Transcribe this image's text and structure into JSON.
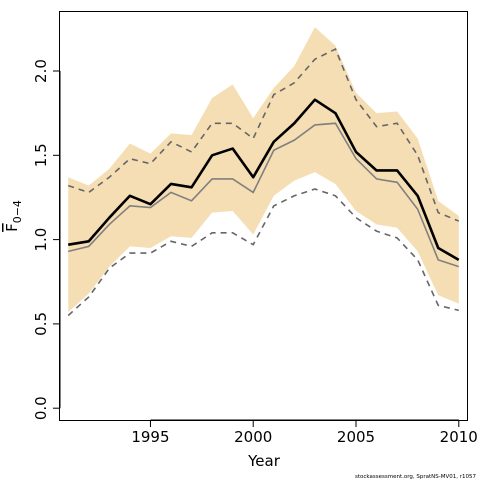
{
  "chart_data": {
    "type": "line",
    "title": "",
    "xlabel": "Year",
    "ylabel": "F̅ 0−4",
    "ylabel_main": "F",
    "ylabel_sub": "0−4",
    "xlim": [
      1990.6,
      2010.4
    ],
    "ylim": [
      -0.07,
      2.35
    ],
    "x_ticks": [
      1995,
      2000,
      2005,
      2010
    ],
    "y_ticks": [
      0.0,
      0.5,
      1.0,
      1.5,
      2.0
    ],
    "x_tick_labels": [
      "1995",
      "2000",
      "2005",
      "2010"
    ],
    "y_tick_labels": [
      "0.0",
      "0.5",
      "1.0",
      "1.5",
      "2.0"
    ],
    "grid": false,
    "x": [
      1991,
      1992,
      1993,
      1994,
      1995,
      1996,
      1997,
      1998,
      1999,
      2000,
      2001,
      2002,
      2003,
      2004,
      2005,
      2006,
      2007,
      2008,
      2009,
      2010
    ],
    "series": [
      {
        "role": "estimate",
        "values": [
          0.97,
          0.99,
          1.13,
          1.26,
          1.21,
          1.33,
          1.31,
          1.5,
          1.54,
          1.37,
          1.58,
          1.69,
          1.83,
          1.75,
          1.52,
          1.41,
          1.41,
          1.26,
          0.95,
          0.88
        ]
      },
      {
        "role": "confidence_band",
        "lower": [
          0.57,
          0.68,
          0.84,
          0.96,
          0.95,
          1.02,
          1.01,
          1.16,
          1.17,
          1.03,
          1.26,
          1.35,
          1.4,
          1.33,
          1.17,
          1.09,
          1.07,
          0.93,
          0.67,
          0.62
        ],
        "upper": [
          1.37,
          1.32,
          1.42,
          1.57,
          1.51,
          1.63,
          1.62,
          1.84,
          1.92,
          1.72,
          1.9,
          2.03,
          2.26,
          2.15,
          1.87,
          1.75,
          1.76,
          1.6,
          1.23,
          1.14
        ]
      },
      {
        "role": "comparison_mean",
        "values": [
          0.93,
          0.96,
          1.09,
          1.2,
          1.19,
          1.28,
          1.23,
          1.36,
          1.36,
          1.28,
          1.53,
          1.59,
          1.68,
          1.69,
          1.48,
          1.36,
          1.34,
          1.18,
          0.88,
          0.84
        ]
      },
      {
        "role": "comparison_upper",
        "values": [
          1.32,
          1.28,
          1.37,
          1.48,
          1.45,
          1.58,
          1.52,
          1.69,
          1.69,
          1.6,
          1.86,
          1.93,
          2.07,
          2.13,
          1.83,
          1.67,
          1.69,
          1.5,
          1.16,
          1.11
        ]
      },
      {
        "role": "comparison_lower",
        "values": [
          0.55,
          0.66,
          0.83,
          0.92,
          0.92,
          0.99,
          0.96,
          1.04,
          1.04,
          0.97,
          1.2,
          1.26,
          1.3,
          1.26,
          1.13,
          1.05,
          1.01,
          0.88,
          0.61,
          0.58
        ]
      }
    ],
    "colors": {
      "band": "#f5deb3",
      "estimate": "#000000",
      "comparison_mean": "#808080",
      "comparison_bounds": "#666666"
    }
  },
  "footnote": "stockassessment.org, SpratNS-MV01, r1057"
}
